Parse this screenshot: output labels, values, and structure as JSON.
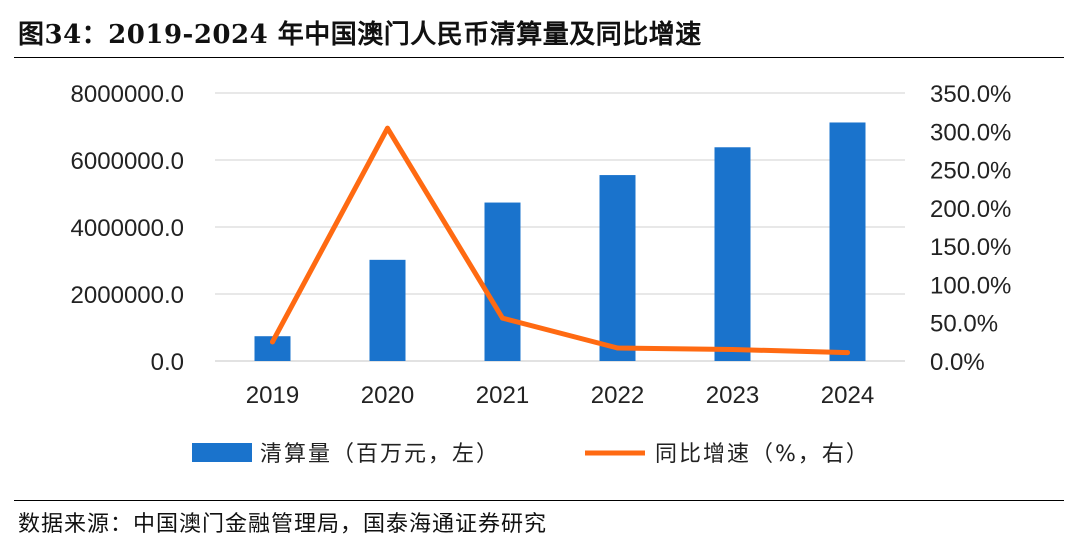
{
  "title": "图34：2019-2024 年中国澳门人民币清算量及同比增速",
  "source": "数据来源：中国澳门金融管理局，国泰海通证券研究",
  "colors": {
    "bar": "#1a73cc",
    "line": "#ff6a12",
    "grid": "#d9d9d9",
    "rule": "#000000"
  },
  "chart_data": {
    "type": "bar+line",
    "categories": [
      "2019",
      "2020",
      "2021",
      "2022",
      "2023",
      "2024"
    ],
    "series": [
      {
        "name": "清算量（百万元，左）",
        "type": "bar",
        "axis": "left",
        "values": [
          740000,
          3020000,
          4730000,
          5550000,
          6380000,
          7120000
        ]
      },
      {
        "name": "同比增速（%，右）",
        "type": "line",
        "axis": "right",
        "values": [
          25.0,
          304.0,
          56.0,
          17.0,
          15.0,
          11.0
        ]
      }
    ],
    "left_axis": {
      "min": 0,
      "max": 8000000,
      "ticks": [
        "0.0",
        "2000000.0",
        "4000000.0",
        "6000000.0",
        "8000000.0"
      ],
      "tick_values": [
        0,
        2000000,
        4000000,
        6000000,
        8000000
      ]
    },
    "right_axis": {
      "min": 0,
      "max": 350,
      "ticks": [
        "0.0%",
        "50.0%",
        "100.0%",
        "150.0%",
        "200.0%",
        "250.0%",
        "300.0%",
        "350.0%"
      ],
      "tick_values": [
        0,
        50,
        100,
        150,
        200,
        250,
        300,
        350
      ]
    },
    "grid": true,
    "legend_position": "bottom"
  }
}
